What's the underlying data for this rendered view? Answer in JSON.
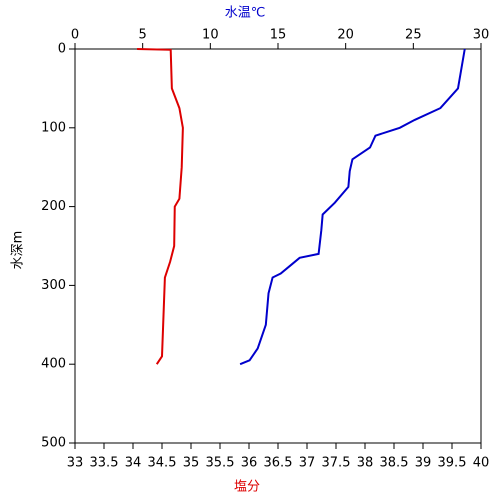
{
  "chart_data": {
    "type": "line",
    "ylabel": "水深m",
    "xlabel": "塩分",
    "x2label": "水温℃",
    "ylim": [
      0,
      500
    ],
    "yticks": [
      0,
      100,
      200,
      300,
      400,
      500
    ],
    "y_inverted": true,
    "xlim": [
      33,
      40
    ],
    "xticks": [
      33,
      33.5,
      34,
      34.5,
      35,
      35.5,
      36,
      36.5,
      37,
      37.5,
      38,
      38.5,
      39,
      39.5,
      40
    ],
    "x2lim": [
      0,
      30
    ],
    "x2ticks": [
      0,
      5,
      10,
      15,
      20,
      25,
      30
    ],
    "series": [
      {
        "color": "#0000cc",
        "axis": "x2",
        "depth": [
          0,
          50,
          75,
          90,
          100,
          110,
          125,
          140,
          155,
          175,
          195,
          210,
          230,
          260,
          265,
          275,
          285,
          290,
          310,
          350,
          380,
          395,
          400
        ],
        "values": [
          28.8,
          28.3,
          27,
          25.1,
          24,
          22.2,
          21.8,
          20.5,
          20.3,
          20.2,
          19.2,
          18.3,
          18.2,
          18,
          16.6,
          15.9,
          15.2,
          14.6,
          14.3,
          14.1,
          13.5,
          12.9,
          12.2
        ]
      },
      {
        "color": "#dd0000",
        "axis": "x",
        "depth": [
          0,
          1,
          50,
          75,
          100,
          150,
          190,
          200,
          250,
          270,
          290,
          350,
          390,
          400
        ],
        "values": [
          34.07,
          34.65,
          34.67,
          34.8,
          34.86,
          34.84,
          34.8,
          34.72,
          34.71,
          34.64,
          34.55,
          34.52,
          34.5,
          34.41
        ]
      }
    ]
  }
}
